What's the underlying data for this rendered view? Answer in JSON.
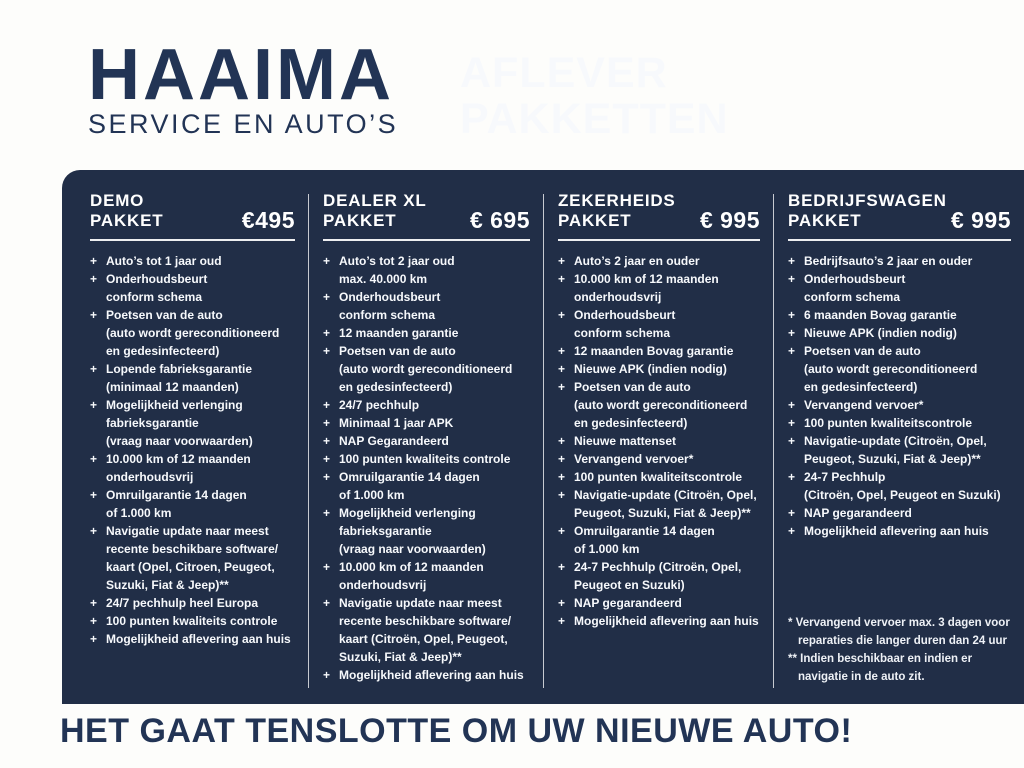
{
  "colors": {
    "navy_text": "#223455",
    "panel_background": "#212e47",
    "panel_text": "#ffffff",
    "divider": "#c3c9d4"
  },
  "header": {
    "brand_name": "HAAIMA",
    "brand_subtitle": "SERVICE EN AUTO’S",
    "title_line1": "AFLEVER",
    "title_line2": "PAKKETTEN"
  },
  "packages": [
    {
      "name_line1": "DEMO",
      "name_line2": "PAKKET",
      "price": "€495",
      "items": [
        [
          "Auto’s tot 1 jaar oud"
        ],
        [
          "Onderhoudsbeurt",
          "conform schema"
        ],
        [
          "Poetsen van de auto",
          "(auto wordt gereconditioneerd",
          "en gedesinfecteerd)"
        ],
        [
          "Lopende fabrieksgarantie",
          "(minimaal 12 maanden)"
        ],
        [
          "Mogelijkheid verlenging",
          "fabrieksgarantie",
          "(vraag naar voorwaarden)"
        ],
        [
          "10.000 km of 12 maanden",
          "onderhoudsvrij"
        ],
        [
          "Omruilgarantie 14 dagen",
          "of 1.000 km"
        ],
        [
          "Navigatie update naar meest",
          "recente beschikbare software/",
          "kaart (Opel, Citroen, Peugeot,",
          "Suzuki, Fiat & Jeep)**"
        ],
        [
          "24/7 pechhulp heel Europa"
        ],
        [
          "100 punten kwaliteits controle"
        ],
        [
          "Mogelijkheid aflevering aan huis"
        ]
      ]
    },
    {
      "name_line1": "DEALER XL",
      "name_line2": "PAKKET",
      "price": "€ 695",
      "items": [
        [
          "Auto’s tot 2 jaar oud",
          "max. 40.000 km"
        ],
        [
          "Onderhoudsbeurt",
          "conform schema"
        ],
        [
          "12 maanden garantie"
        ],
        [
          "Poetsen van de auto",
          "(auto wordt gereconditioneerd",
          "en gedesinfecteerd)"
        ],
        [
          "24/7 pechhulp"
        ],
        [
          "Minimaal 1 jaar APK"
        ],
        [
          "NAP Gegarandeerd"
        ],
        [
          "100 punten kwaliteits controle"
        ],
        [
          "Omruilgarantie 14 dagen",
          "of 1.000 km"
        ],
        [
          "Mogelijkheid verlenging",
          "fabrieksgarantie",
          "(vraag naar voorwaarden)"
        ],
        [
          "10.000 km of 12 maanden",
          "onderhoudsvrij"
        ],
        [
          "Navigatie update naar meest",
          "recente beschikbare software/",
          "kaart (Citroën, Opel, Peugeot,",
          "Suzuki, Fiat & Jeep)**"
        ],
        [
          "Mogelijkheid aflevering aan huis"
        ]
      ]
    },
    {
      "name_line1": "ZEKERHEIDS",
      "name_line2": "PAKKET",
      "price": "€ 995",
      "items": [
        [
          "Auto’s 2 jaar en ouder"
        ],
        [
          "10.000 km of 12 maanden",
          "onderhoudsvrij"
        ],
        [
          "Onderhoudsbeurt",
          "conform schema"
        ],
        [
          "12 maanden Bovag garantie"
        ],
        [
          "Nieuwe APK (indien nodig)"
        ],
        [
          "Poetsen van de auto",
          "(auto wordt gereconditioneerd",
          "en gedesinfecteerd)"
        ],
        [
          "Nieuwe mattenset"
        ],
        [
          "Vervangend vervoer*"
        ],
        [
          "100 punten kwaliteitscontrole"
        ],
        [
          "Navigatie-update (Citroën, Opel,",
          "Peugeot, Suzuki, Fiat & Jeep)**"
        ],
        [
          "Omruilgarantie 14 dagen",
          "of 1.000 km"
        ],
        [
          "24-7 Pechhulp (Citroën, Opel,",
          "Peugeot en Suzuki)"
        ],
        [
          "NAP gegarandeerd"
        ],
        [
          "Mogelijkheid aflevering aan huis"
        ]
      ]
    },
    {
      "name_line1": "BEDRIJFSWAGEN",
      "name_line2": "PAKKET",
      "price": "€ 995",
      "items": [
        [
          "Bedrijfsauto’s 2 jaar en ouder"
        ],
        [
          "Onderhoudsbeurt",
          "conform schema"
        ],
        [
          "6 maanden Bovag garantie"
        ],
        [
          "Nieuwe APK (indien nodig)"
        ],
        [
          "Poetsen van de auto",
          "(auto wordt gereconditioneerd",
          "en gedesinfecteerd)"
        ],
        [
          "Vervangend vervoer*"
        ],
        [
          "100 punten kwaliteitscontrole"
        ],
        [
          "Navigatie-update (Citroën, Opel,",
          "Peugeot, Suzuki, Fiat & Jeep)**"
        ],
        [
          "24-7 Pechhulp",
          "(Citroën, Opel, Peugeot en Suzuki)"
        ],
        [
          "NAP gegarandeerd"
        ],
        [
          "Mogelijkheid aflevering aan huis"
        ]
      ]
    }
  ],
  "footnotes": [
    {
      "lines": [
        "* Vervangend vervoer max. 3 dagen voor",
        "reparaties die langer duren dan 24 uur"
      ]
    },
    {
      "lines": [
        "** Indien beschikbaar en indien er",
        "navigatie in de auto zit."
      ]
    }
  ],
  "tagline": "HET GAAT TENSLOTTE OM UW NIEUWE AUTO!"
}
